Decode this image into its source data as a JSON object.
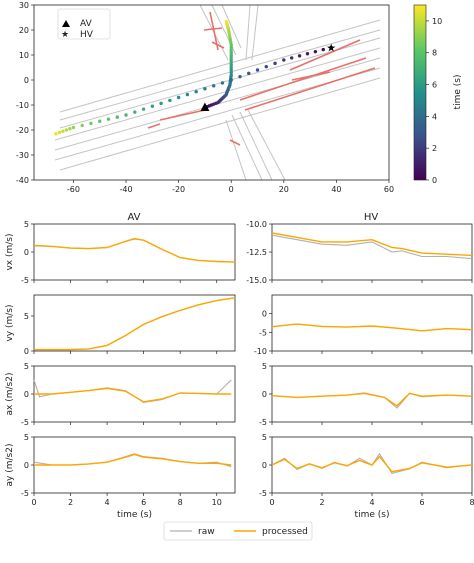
{
  "chart_data": [
    {
      "type": "scatter",
      "xlim": [
        -75,
        60
      ],
      "ylim": [
        -40,
        30
      ],
      "xticks": [
        "-60",
        "-40",
        "-20",
        "0",
        "20",
        "40",
        "60"
      ],
      "yticks": [
        "30",
        "20",
        "10",
        "0",
        "-10",
        "-20",
        "-30",
        "-40"
      ],
      "legend": {
        "position": "top-left",
        "entries": [
          "AV",
          "HV"
        ]
      },
      "colorbar": {
        "label": "time (s)",
        "ticks": [
          "10",
          "8",
          "6",
          "4",
          "2",
          "0"
        ],
        "range": [
          0,
          11
        ]
      },
      "series": [
        {
          "name": "AV",
          "marker": "triangle",
          "x": [
            -10,
            -5,
            -2,
            -0.5,
            0,
            0,
            0,
            -1,
            -2
          ],
          "y": [
            -11,
            -9,
            -6,
            -2,
            2,
            8,
            14,
            20,
            24
          ]
        },
        {
          "name": "HV",
          "marker": "star",
          "x": [
            38,
            20,
            0,
            -20,
            -40,
            -60,
            -68
          ],
          "y": [
            13,
            8,
            0,
            -7,
            -14,
            -19,
            -22
          ]
        }
      ]
    },
    {
      "type": "line",
      "column_titles": [
        "AV",
        "HV"
      ],
      "xlabel": "time (s)",
      "legend": {
        "position": "bottom-center",
        "entries": [
          "raw",
          "processed"
        ]
      },
      "colors": {
        "raw": "#b0b0b0",
        "processed": "#ffa500"
      },
      "rows": [
        {
          "ylabel": "vx (m/s)",
          "av": {
            "xlim": [
              0,
              11
            ],
            "ylim": [
              -5,
              5
            ],
            "yticks": [
              "5",
              "0",
              "-5"
            ],
            "x": [
              0,
              1,
              2,
              3,
              4,
              5,
              5.5,
              6,
              7,
              8,
              9,
              10,
              11
            ],
            "raw": [
              1.1,
              1.0,
              0.7,
              0.6,
              0.8,
              1.9,
              2.3,
              2.1,
              0.5,
              -1.0,
              -1.5,
              -1.7,
              -1.8
            ],
            "processed": [
              1.2,
              1.0,
              0.7,
              0.6,
              0.8,
              1.9,
              2.4,
              2.1,
              0.5,
              -1.0,
              -1.5,
              -1.7,
              -1.8
            ]
          },
          "hv": {
            "xlim": [
              0,
              8
            ],
            "ylim": [
              -15,
              -10
            ],
            "yticks": [
              "-10.0",
              "-12.5",
              "-15.0"
            ],
            "x": [
              0,
              1,
              2,
              3,
              4,
              4.8,
              5.2,
              6,
              7,
              8
            ],
            "raw": [
              -11.0,
              -11.4,
              -11.8,
              -11.9,
              -11.6,
              -12.5,
              -12.4,
              -12.9,
              -12.9,
              -13.1
            ],
            "processed": [
              -10.8,
              -11.2,
              -11.6,
              -11.6,
              -11.4,
              -12.1,
              -12.2,
              -12.6,
              -12.7,
              -12.8
            ]
          }
        },
        {
          "ylabel": "vy (m/s)",
          "av": {
            "xlim": [
              0,
              11
            ],
            "ylim": [
              0,
              8
            ],
            "yticks": [
              "5",
              "0"
            ],
            "x": [
              0,
              1,
              2,
              3,
              4,
              5,
              6,
              7,
              8,
              9,
              10,
              11
            ],
            "raw": [
              0.2,
              0.2,
              0.2,
              0.3,
              0.8,
              2.2,
              3.8,
              4.9,
              5.8,
              6.6,
              7.2,
              7.6
            ],
            "processed": [
              0.2,
              0.2,
              0.2,
              0.3,
              0.8,
              2.2,
              3.8,
              4.9,
              5.8,
              6.6,
              7.2,
              7.6
            ]
          },
          "hv": {
            "xlim": [
              0,
              8
            ],
            "ylim": [
              -10,
              5
            ],
            "yticks": [
              "0",
              "-5",
              "-10"
            ],
            "x": [
              0,
              1,
              2,
              3,
              4,
              5,
              6,
              7,
              8
            ],
            "raw": [
              -3.5,
              -2.8,
              -3.4,
              -3.6,
              -3.3,
              -3.9,
              -4.6,
              -4.0,
              -4.3
            ],
            "processed": [
              -3.5,
              -2.8,
              -3.4,
              -3.6,
              -3.3,
              -3.9,
              -4.6,
              -4.0,
              -4.3
            ]
          }
        },
        {
          "ylabel": "ax (m/s2)",
          "av": {
            "xlim": [
              0,
              11
            ],
            "ylim": [
              -5,
              5
            ],
            "yticks": [
              "5",
              "0",
              "-5"
            ],
            "x": [
              0,
              0.3,
              1,
              2,
              3,
              4,
              5,
              6,
              7,
              8,
              9,
              10,
              10.8
            ],
            "raw": [
              2.5,
              -0.5,
              0.0,
              0.3,
              0.6,
              1.1,
              0.6,
              -1.5,
              -1.0,
              0.2,
              0.1,
              0.0,
              2.5
            ],
            "processed": [
              0.0,
              0.0,
              0.0,
              0.3,
              0.6,
              1.0,
              0.5,
              -1.4,
              -0.9,
              0.2,
              0.1,
              0.0,
              0.0
            ]
          },
          "hv": {
            "xlim": [
              0,
              8
            ],
            "ylim": [
              -5,
              5
            ],
            "yticks": [
              "5",
              "0",
              "-5"
            ],
            "x": [
              0,
              1,
              2,
              3,
              3.7,
              4.5,
              5,
              5.5,
              6,
              7,
              8
            ],
            "raw": [
              -0.3,
              -0.6,
              -0.4,
              -0.2,
              0.2,
              -0.6,
              -2.5,
              0.1,
              -0.5,
              -0.2,
              -0.4
            ],
            "processed": [
              -0.3,
              -0.6,
              -0.4,
              -0.2,
              0.1,
              -0.6,
              -2.1,
              0.1,
              -0.4,
              -0.2,
              -0.4
            ]
          }
        },
        {
          "ylabel": "ay (m/s2)",
          "av": {
            "xlim": [
              0,
              11
            ],
            "ylim": [
              -5,
              5
            ],
            "yticks": [
              "5",
              "0",
              "-5"
            ],
            "x": [
              0,
              1,
              2,
              3,
              4,
              5,
              5.5,
              6,
              7,
              8,
              9,
              10,
              10.8
            ],
            "raw": [
              0.5,
              0.0,
              0.0,
              0.2,
              0.5,
              1.5,
              2.0,
              1.5,
              1.2,
              0.6,
              0.3,
              0.5,
              -0.3
            ],
            "processed": [
              0.0,
              0.0,
              0.0,
              0.2,
              0.5,
              1.4,
              1.9,
              1.4,
              1.1,
              0.6,
              0.3,
              0.3,
              0.0
            ]
          },
          "hv": {
            "xlim": [
              0,
              8
            ],
            "ylim": [
              -5,
              5
            ],
            "yticks": [
              "5",
              "0",
              "-5"
            ],
            "x": [
              0,
              0.5,
              1,
              1.5,
              2,
              2.5,
              3,
              3.5,
              4,
              4.3,
              4.8,
              5.5,
              6,
              6.5,
              7,
              7.5,
              8
            ],
            "raw": [
              0,
              1.2,
              -0.8,
              0.2,
              -0.6,
              0.5,
              -0.2,
              1.2,
              0,
              2.0,
              -1.5,
              -0.7,
              0.5,
              0,
              -0.5,
              -0.2,
              0
            ],
            "processed": [
              0,
              1.0,
              -0.6,
              0.2,
              -0.5,
              0.4,
              -0.1,
              0.8,
              0,
              1.5,
              -1.2,
              -0.6,
              0.4,
              0,
              -0.4,
              -0.2,
              0
            ]
          }
        }
      ]
    }
  ]
}
